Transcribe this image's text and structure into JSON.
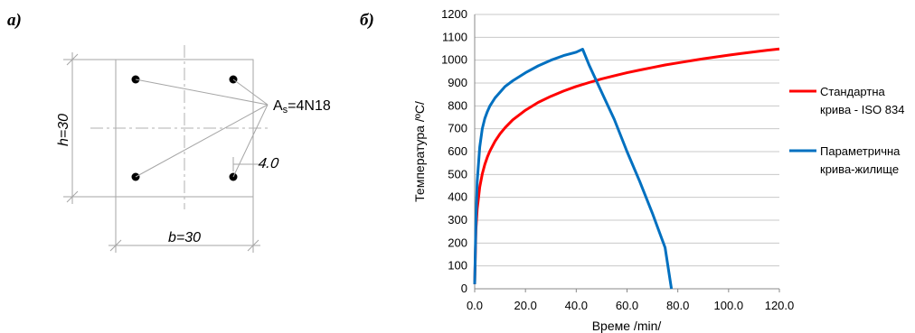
{
  "panel_a": {
    "label": "а)",
    "rebar_label": "As=4N18",
    "rebar_label_main": "A",
    "rebar_label_sub": "s",
    "rebar_label_rest": "=4N18",
    "cover_label": "4.0",
    "height_label": "h=30",
    "width_label": "b=30"
  },
  "panel_b": {
    "label": "б)"
  },
  "chart_data": {
    "type": "line",
    "xlabel": "Време /min/",
    "ylabel": "Температура  /ºC/",
    "xlim": [
      0,
      120
    ],
    "ylim": [
      0,
      1200
    ],
    "x_ticks": [
      "0.0",
      "20.0",
      "40.0",
      "60.0",
      "80.0",
      "100.0",
      "120.0"
    ],
    "y_ticks": [
      "0",
      "100",
      "200",
      "300",
      "400",
      "500",
      "600",
      "700",
      "800",
      "900",
      "1000",
      "1100",
      "1200"
    ],
    "grid": "horizontal",
    "legend_position": "right",
    "series": [
      {
        "name": "Стандартна крива - ISO 834",
        "name_lines": [
          "Стандартна",
          "крива - ISO 834"
        ],
        "color": "#ff0000",
        "points": [
          [
            0,
            20
          ],
          [
            0.5,
            261
          ],
          [
            1,
            349
          ],
          [
            2,
            445
          ],
          [
            3,
            502
          ],
          [
            4,
            544
          ],
          [
            5,
            576
          ],
          [
            6,
            603
          ],
          [
            8,
            645
          ],
          [
            10,
            678
          ],
          [
            12,
            705
          ],
          [
            15,
            739
          ],
          [
            20,
            781
          ],
          [
            25,
            815
          ],
          [
            30,
            842
          ],
          [
            35,
            865
          ],
          [
            40,
            885
          ],
          [
            45,
            902
          ],
          [
            50,
            918
          ],
          [
            55,
            932
          ],
          [
            60,
            945
          ],
          [
            65,
            957
          ],
          [
            70,
            968
          ],
          [
            75,
            979
          ],
          [
            80,
            988
          ],
          [
            85,
            997
          ],
          [
            90,
            1006
          ],
          [
            95,
            1014
          ],
          [
            100,
            1022
          ],
          [
            105,
            1029
          ],
          [
            110,
            1036
          ],
          [
            115,
            1043
          ],
          [
            120,
            1049
          ]
        ]
      },
      {
        "name": "Параметрична крива-жилище",
        "name_lines": [
          "Параметрична",
          "крива-жилище"
        ],
        "color": "#0070c0",
        "points": [
          [
            0,
            20
          ],
          [
            0.5,
            300
          ],
          [
            1,
            470
          ],
          [
            2,
            620
          ],
          [
            3,
            700
          ],
          [
            4,
            745
          ],
          [
            5,
            775
          ],
          [
            6,
            800
          ],
          [
            8,
            835
          ],
          [
            10,
            860
          ],
          [
            12,
            885
          ],
          [
            15,
            910
          ],
          [
            20,
            945
          ],
          [
            25,
            975
          ],
          [
            30,
            1000
          ],
          [
            35,
            1020
          ],
          [
            40,
            1035
          ],
          [
            42.5,
            1048
          ],
          [
            45,
            980
          ],
          [
            50,
            860
          ],
          [
            55,
            740
          ],
          [
            60,
            600
          ],
          [
            65,
            470
          ],
          [
            70,
            330
          ],
          [
            75,
            180
          ],
          [
            77.5,
            0
          ]
        ]
      }
    ]
  },
  "colors": {
    "drawing_line": "#a6a6a6",
    "grid": "#c8c8c8",
    "axis": "#888888"
  }
}
